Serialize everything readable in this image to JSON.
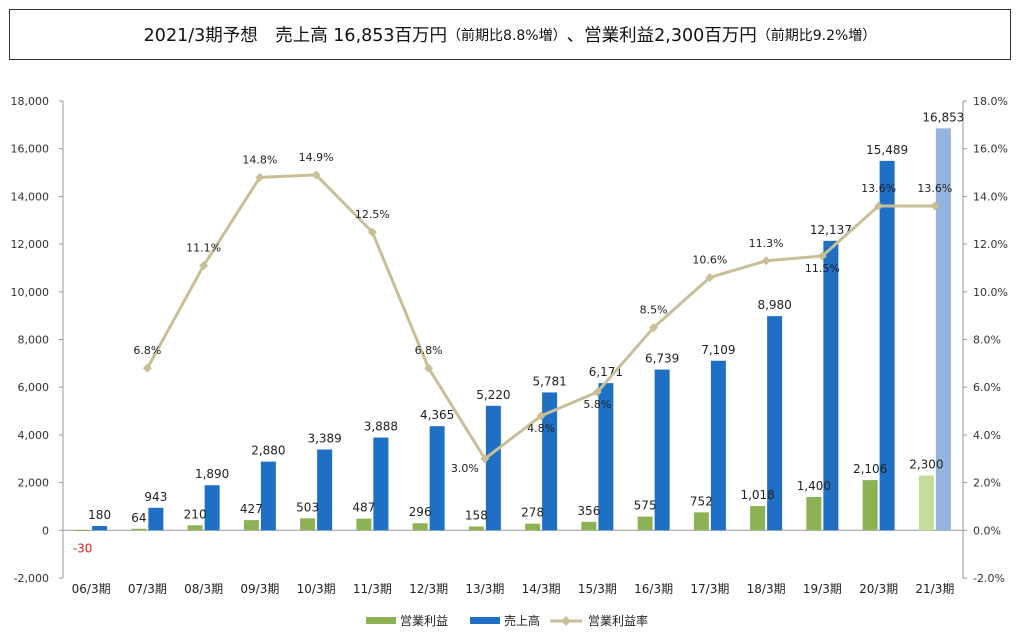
{
  "header": {
    "main": "2021/3期予想　売上高 16,853百万円",
    "sales_change": "（前期比8.8%増）",
    "mid": "、営業利益2,300百万円",
    "profit_change": "（前期比9.2%増）"
  },
  "chart_data": {
    "type": "bar",
    "categories": [
      "06/3期",
      "07/3期",
      "08/3期",
      "09/3期",
      "10/3期",
      "11/3期",
      "12/3期",
      "13/3期",
      "14/3期",
      "15/3期",
      "16/3期",
      "17/3期",
      "18/3期",
      "19/3期",
      "20/3期",
      "21/3期"
    ],
    "series": [
      {
        "name": "営業利益",
        "type": "bar",
        "axis": "left",
        "color": "#8db255",
        "forecast_color": "#c4dd9b",
        "values": [
          -30,
          64,
          210,
          427,
          503,
          487,
          296,
          158,
          278,
          356,
          575,
          752,
          1018,
          1400,
          2106,
          2300
        ],
        "labels": [
          "-30",
          "64",
          "210",
          "427",
          "503",
          "487",
          "296",
          "158",
          "278",
          "356",
          "575",
          "752",
          "1,018",
          "1,400",
          "2,106",
          "2,300"
        ]
      },
      {
        "name": "売上高",
        "type": "bar",
        "axis": "left",
        "color": "#1f6fc5",
        "forecast_color": "#94b4dc",
        "values": [
          180,
          943,
          1890,
          2880,
          3389,
          3888,
          4365,
          5220,
          5781,
          6171,
          6739,
          7109,
          8980,
          12137,
          15489,
          16853
        ],
        "labels": [
          "180",
          "943",
          "1,890",
          "2,880",
          "3,389",
          "3,888",
          "4,365",
          "5,220",
          "5,781",
          "6,171",
          "6,739",
          "7,109",
          "8,980",
          "12,137",
          "15,489",
          "16,853"
        ]
      },
      {
        "name": "営業利益率",
        "type": "line",
        "axis": "right",
        "color": "#c8bf96",
        "values": [
          null,
          6.8,
          11.1,
          14.8,
          14.9,
          12.5,
          6.8,
          3.0,
          4.8,
          5.8,
          8.5,
          10.6,
          11.3,
          11.5,
          13.6,
          13.6
        ],
        "labels": [
          "",
          "6.8%",
          "11.1%",
          "14.8%",
          "14.9%",
          "12.5%",
          "6.8%",
          "3.0%",
          "4.8%",
          "5.8%",
          "8.5%",
          "10.6%",
          "11.3%",
          "11.5%",
          "13.6%",
          "13.6%"
        ]
      }
    ],
    "forecast_index": 15,
    "ylim_left": [
      -2000,
      18000
    ],
    "yticks_left": [
      "-2,000",
      "0",
      "2,000",
      "4,000",
      "6,000",
      "8,000",
      "10,000",
      "12,000",
      "14,000",
      "16,000",
      "18,000"
    ],
    "ylim_right": [
      -2.0,
      18.0
    ],
    "yticks_right": [
      "-2.0%",
      "0.0%",
      "2.0%",
      "4.0%",
      "6.0%",
      "8.0%",
      "10.0%",
      "12.0%",
      "14.0%",
      "16.0%",
      "18.0%"
    ],
    "grid": false,
    "legend_position": "bottom"
  }
}
